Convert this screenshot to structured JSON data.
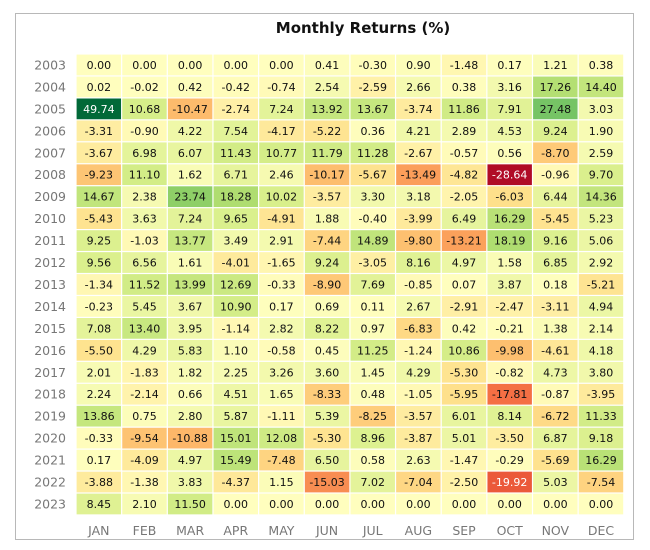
{
  "chart_data": {
    "type": "heatmap",
    "title": "Monthly Returns (%)",
    "columns": [
      "JAN",
      "FEB",
      "MAR",
      "APR",
      "MAY",
      "JUN",
      "JUL",
      "AUG",
      "SEP",
      "OCT",
      "NOV",
      "DEC"
    ],
    "rows": [
      "2003",
      "2004",
      "2005",
      "2006",
      "2007",
      "2008",
      "2009",
      "2010",
      "2011",
      "2012",
      "2013",
      "2014",
      "2015",
      "2016",
      "2017",
      "2018",
      "2019",
      "2020",
      "2021",
      "2022",
      "2023"
    ],
    "values": [
      [
        0.0,
        0.0,
        0.0,
        0.0,
        0.0,
        0.41,
        -0.3,
        0.9,
        -1.48,
        0.17,
        1.21,
        0.38
      ],
      [
        0.02,
        -0.02,
        0.42,
        -0.42,
        -0.74,
        2.54,
        -2.59,
        2.66,
        0.38,
        3.16,
        17.26,
        14.4
      ],
      [
        49.74,
        10.68,
        -10.47,
        -2.74,
        7.24,
        13.92,
        13.67,
        -3.74,
        11.86,
        7.91,
        27.48,
        3.03
      ],
      [
        -3.31,
        -0.9,
        4.22,
        7.54,
        -4.17,
        -5.22,
        0.36,
        4.21,
        2.89,
        4.53,
        9.24,
        1.9
      ],
      [
        -3.67,
        6.98,
        6.07,
        11.43,
        10.77,
        11.79,
        11.28,
        -2.67,
        -0.57,
        0.56,
        -8.7,
        2.59
      ],
      [
        -9.23,
        11.1,
        1.62,
        6.71,
        2.46,
        -10.17,
        -5.67,
        -13.49,
        -4.82,
        -28.64,
        -0.96,
        9.7
      ],
      [
        14.67,
        2.38,
        23.74,
        18.28,
        10.02,
        -3.57,
        3.3,
        3.18,
        -2.05,
        -6.03,
        6.44,
        14.36
      ],
      [
        -5.43,
        3.63,
        7.24,
        9.65,
        -4.91,
        1.88,
        -0.4,
        -3.99,
        6.49,
        16.29,
        -5.45,
        5.23
      ],
      [
        9.25,
        -1.03,
        13.77,
        3.49,
        2.91,
        -7.44,
        14.89,
        -9.8,
        -13.21,
        18.19,
        9.16,
        5.06
      ],
      [
        9.56,
        6.56,
        1.61,
        -4.01,
        -1.65,
        9.24,
        -3.05,
        8.16,
        4.97,
        1.58,
        6.85,
        2.92
      ],
      [
        -1.34,
        11.52,
        13.99,
        12.69,
        -0.33,
        -8.9,
        7.69,
        -0.85,
        0.07,
        3.87,
        0.18,
        -5.21
      ],
      [
        -0.23,
        5.45,
        3.67,
        10.9,
        0.17,
        0.69,
        0.11,
        2.67,
        -2.91,
        -2.47,
        -3.11,
        4.94
      ],
      [
        7.08,
        13.4,
        3.95,
        -1.14,
        2.82,
        8.22,
        0.97,
        -6.83,
        0.42,
        -0.21,
        1.38,
        2.14
      ],
      [
        -5.5,
        4.29,
        5.83,
        1.1,
        -0.58,
        0.45,
        11.25,
        -1.24,
        10.86,
        -9.98,
        -4.61,
        4.18
      ],
      [
        2.01,
        -1.83,
        1.82,
        2.25,
        3.26,
        3.6,
        1.45,
        4.29,
        -5.3,
        -0.82,
        4.73,
        3.8
      ],
      [
        2.24,
        -2.14,
        0.66,
        4.51,
        1.65,
        -8.33,
        0.48,
        -1.05,
        -5.95,
        -17.81,
        -0.87,
        -3.95
      ],
      [
        13.86,
        0.75,
        2.8,
        5.87,
        -1.11,
        5.39,
        -8.25,
        -3.57,
        6.01,
        8.14,
        -6.72,
        11.33
      ],
      [
        -0.33,
        -9.54,
        -10.88,
        15.01,
        12.08,
        -5.3,
        8.96,
        -3.87,
        5.01,
        -3.5,
        6.87,
        9.18
      ],
      [
        0.17,
        -4.09,
        4.97,
        15.49,
        -7.48,
        6.5,
        0.58,
        2.63,
        -1.47,
        -0.29,
        -5.69,
        16.29
      ],
      [
        -3.88,
        -1.38,
        3.83,
        -4.37,
        1.15,
        -15.03,
        7.02,
        -7.04,
        -2.5,
        -19.92,
        5.03,
        -7.54
      ],
      [
        8.45,
        2.1,
        11.5,
        0.0,
        0.0,
        0.0,
        0.0,
        0.0,
        0.0,
        0.0,
        0.0,
        0.0
      ]
    ],
    "value_format": "2 decimals",
    "colormap": "red-yellow-green (diverging, centered at 0)",
    "color_range": [
      -30,
      50
    ],
    "grid": false,
    "colors": {
      "low": "#d9442c",
      "mid": "#fffebd",
      "high": "#006837"
    }
  }
}
